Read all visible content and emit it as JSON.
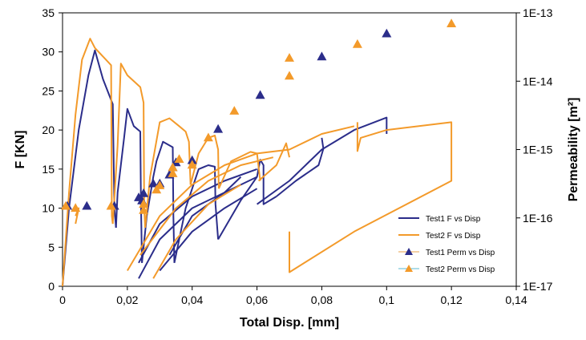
{
  "chart_data": {
    "type": "line",
    "title": "",
    "xlabel": "Total Disp. [mm]",
    "ylabel": "F [KN]",
    "y2label": "Permeability [m²]",
    "xlim": [
      0,
      0.14
    ],
    "ylim": [
      0,
      35
    ],
    "y2lim": [
      1e-17,
      1e-13
    ],
    "y2scale": "log",
    "x_ticks": [
      0,
      0.02,
      0.04,
      0.06,
      0.08,
      0.1,
      0.12,
      0.14
    ],
    "x_tick_labels": [
      "0",
      "0,02",
      "0,04",
      "0,06",
      "0,08",
      "0,1",
      "0,12",
      "0,14"
    ],
    "y_ticks": [
      0,
      5,
      10,
      15,
      20,
      25,
      30,
      35
    ],
    "y_tick_labels": [
      "0",
      "5",
      "10",
      "15",
      "20",
      "25",
      "30",
      "35"
    ],
    "y2_ticks": [
      1e-17,
      1e-16,
      1e-15,
      1e-14,
      1e-13
    ],
    "y2_tick_labels": [
      "1E-17",
      "1E-16",
      "1E-15",
      "1E-14",
      "1E-13"
    ],
    "grid": false,
    "legend_position": "bottom-right",
    "colors": {
      "test1": "#2b2d8a",
      "test2": "#f39a2a"
    },
    "series": [
      {
        "name": "Test1 F vs Disp",
        "axis": "left",
        "kind": "line",
        "segments": [
          [
            [
              0,
              0
            ],
            [
              0.002,
              10
            ],
            [
              0.005,
              20
            ],
            [
              0.008,
              27
            ],
            [
              0.01,
              30.2
            ],
            [
              0.0125,
              26.5
            ],
            [
              0.0155,
              23.3
            ],
            [
              0.016,
              10
            ],
            [
              0.0165,
              7.5
            ]
          ],
          [
            [
              0.0165,
              7.5
            ],
            [
              0.017,
              12
            ],
            [
              0.019,
              19
            ],
            [
              0.02,
              22.7
            ],
            [
              0.022,
              20.5
            ],
            [
              0.024,
              19.8
            ],
            [
              0.0242,
              11
            ],
            [
              0.0245,
              3
            ]
          ],
          [
            [
              0.0245,
              3
            ],
            [
              0.026,
              9
            ],
            [
              0.028,
              14
            ],
            [
              0.029,
              16
            ],
            [
              0.031,
              18.5
            ],
            [
              0.034,
              17.8
            ],
            [
              0.0342,
              9
            ],
            [
              0.0345,
              3
            ]
          ],
          [
            [
              0.0345,
              3
            ],
            [
              0.038,
              10
            ],
            [
              0.042,
              15
            ],
            [
              0.045,
              15.5
            ],
            [
              0.047,
              15.3
            ],
            [
              0.0472,
              10.5
            ],
            [
              0.048,
              6
            ]
          ],
          [
            [
              0.048,
              6
            ],
            [
              0.055,
              11
            ],
            [
              0.06,
              14
            ],
            [
              0.061,
              16.2
            ],
            [
              0.062,
              15.5
            ],
            [
              0.062,
              10.5
            ],
            [
              0.066,
              11.5
            ]
          ],
          [
            [
              0.066,
              11.5
            ],
            [
              0.072,
              13.5
            ],
            [
              0.079,
              15.5
            ],
            [
              0.0805,
              17.6
            ],
            [
              0.08,
              19
            ]
          ],
          [
            [
              0.06,
              10.5
            ],
            [
              0.07,
              13.5
            ],
            [
              0.08,
              17.5
            ],
            [
              0.09,
              20
            ],
            [
              0.1,
              21.6
            ],
            [
              0.1,
              19.5
            ]
          ],
          [
            [
              0.0235,
              1
            ],
            [
              0.03,
              6
            ],
            [
              0.04,
              10
            ],
            [
              0.05,
              12
            ],
            [
              0.06,
              14
            ]
          ],
          [
            [
              0.0235,
              3
            ],
            [
              0.03,
              8
            ],
            [
              0.04,
              11.5
            ],
            [
              0.05,
              13.5
            ],
            [
              0.06,
              15
            ]
          ],
          [
            [
              0.03,
              2
            ],
            [
              0.04,
              7
            ],
            [
              0.05,
              10
            ],
            [
              0.06,
              12.5
            ]
          ],
          [
            [
              0.033,
              4
            ],
            [
              0.04,
              9
            ],
            [
              0.05,
              12
            ],
            [
              0.055,
              14
            ]
          ]
        ]
      },
      {
        "name": "Test2 F vs Disp",
        "axis": "left",
        "kind": "line",
        "segments": [
          [
            [
              0,
              0
            ],
            [
              0.002,
              12
            ],
            [
              0.004,
              22
            ],
            [
              0.006,
              29
            ],
            [
              0.0085,
              31.7
            ],
            [
              0.01,
              30.5
            ],
            [
              0.015,
              28.3
            ],
            [
              0.0152,
              9
            ],
            [
              0.0155,
              8
            ]
          ],
          [
            [
              0.0155,
              8
            ],
            [
              0.017,
              18
            ],
            [
              0.018,
              28.5
            ],
            [
              0.02,
              27
            ],
            [
              0.024,
              25.5
            ],
            [
              0.025,
              23.5
            ],
            [
              0.0252,
              10
            ],
            [
              0.0255,
              7.5
            ]
          ],
          [
            [
              0.0255,
              7.5
            ],
            [
              0.027,
              14
            ],
            [
              0.03,
              21
            ],
            [
              0.033,
              21.5
            ],
            [
              0.036,
              20.5
            ],
            [
              0.038,
              19.8
            ],
            [
              0.039,
              18.5
            ],
            [
              0.0395,
              13
            ]
          ],
          [
            [
              0.0395,
              13
            ],
            [
              0.042,
              17
            ],
            [
              0.045,
              19
            ],
            [
              0.047,
              19.3
            ],
            [
              0.048,
              17.5
            ],
            [
              0.0482,
              12.5
            ]
          ],
          [
            [
              0.0482,
              12.5
            ],
            [
              0.052,
              16
            ],
            [
              0.058,
              17.2
            ],
            [
              0.06,
              17
            ],
            [
              0.061,
              13.5
            ]
          ],
          [
            [
              0.0605,
              13.5
            ],
            [
              0.066,
              15.5
            ],
            [
              0.069,
              18.3
            ],
            [
              0.07,
              16.5
            ]
          ],
          [
            [
              0.07,
              7
            ],
            [
              0.07,
              1.8
            ],
            [
              0.09,
              7
            ],
            [
              0.12,
              13.5
            ],
            [
              0.12,
              21
            ],
            [
              0.1,
              20
            ],
            [
              0.092,
              19
            ],
            [
              0.091,
              17.3
            ],
            [
              0.091,
              21
            ]
          ],
          [
            [
              0.02,
              2
            ],
            [
              0.03,
              9
            ],
            [
              0.04,
              13
            ],
            [
              0.05,
              15.5
            ],
            [
              0.06,
              17
            ],
            [
              0.07,
              17.5
            ],
            [
              0.08,
              19.5
            ],
            [
              0.09,
              20.5
            ]
          ],
          [
            [
              0.024,
              4
            ],
            [
              0.035,
              10
            ],
            [
              0.045,
              13.5
            ],
            [
              0.055,
              15.5
            ],
            [
              0.065,
              16.5
            ]
          ],
          [
            [
              0.028,
              1
            ],
            [
              0.035,
              6
            ],
            [
              0.045,
              10.5
            ],
            [
              0.055,
              13
            ]
          ],
          [
            [
              0.004,
              9
            ],
            [
              0.005,
              10
            ],
            [
              0.004,
              8
            ]
          ]
        ]
      },
      {
        "name": "Test1 Perm vs Disp",
        "axis": "right",
        "kind": "marker",
        "marker": "triangle",
        "x": [
          0.0015,
          0.0075,
          0.016,
          0.0235,
          0.0245,
          0.025,
          0.028,
          0.03,
          0.034,
          0.033,
          0.035,
          0.04,
          0.048,
          0.061,
          0.08,
          0.1
        ],
        "y": [
          1.5e-16,
          1.5e-16,
          1.5e-16,
          2e-16,
          1.8e-16,
          2.3e-16,
          3.2e-16,
          3.2e-16,
          5.5e-16,
          4.3e-16,
          6.5e-16,
          7e-16,
          2e-15,
          6.3e-15,
          2.3e-14,
          5e-14
        ]
      },
      {
        "name": "Test2 Perm vs Disp",
        "axis": "right",
        "kind": "marker",
        "marker": "triangle",
        "x": [
          0.001,
          0.004,
          0.015,
          0.025,
          0.025,
          0.029,
          0.03,
          0.034,
          0.034,
          0.036,
          0.04,
          0.045,
          0.053,
          0.07,
          0.07,
          0.091,
          0.12
        ],
        "y": [
          1.5e-16,
          1.4e-16,
          1.5e-16,
          1.3e-16,
          1.6e-16,
          2.6e-16,
          3e-16,
          4.5e-16,
          5.5e-16,
          7.3e-16,
          6e-16,
          1.5e-15,
          3.7e-15,
          2.2e-14,
          1.2e-14,
          3.5e-14,
          7e-14
        ]
      }
    ]
  }
}
